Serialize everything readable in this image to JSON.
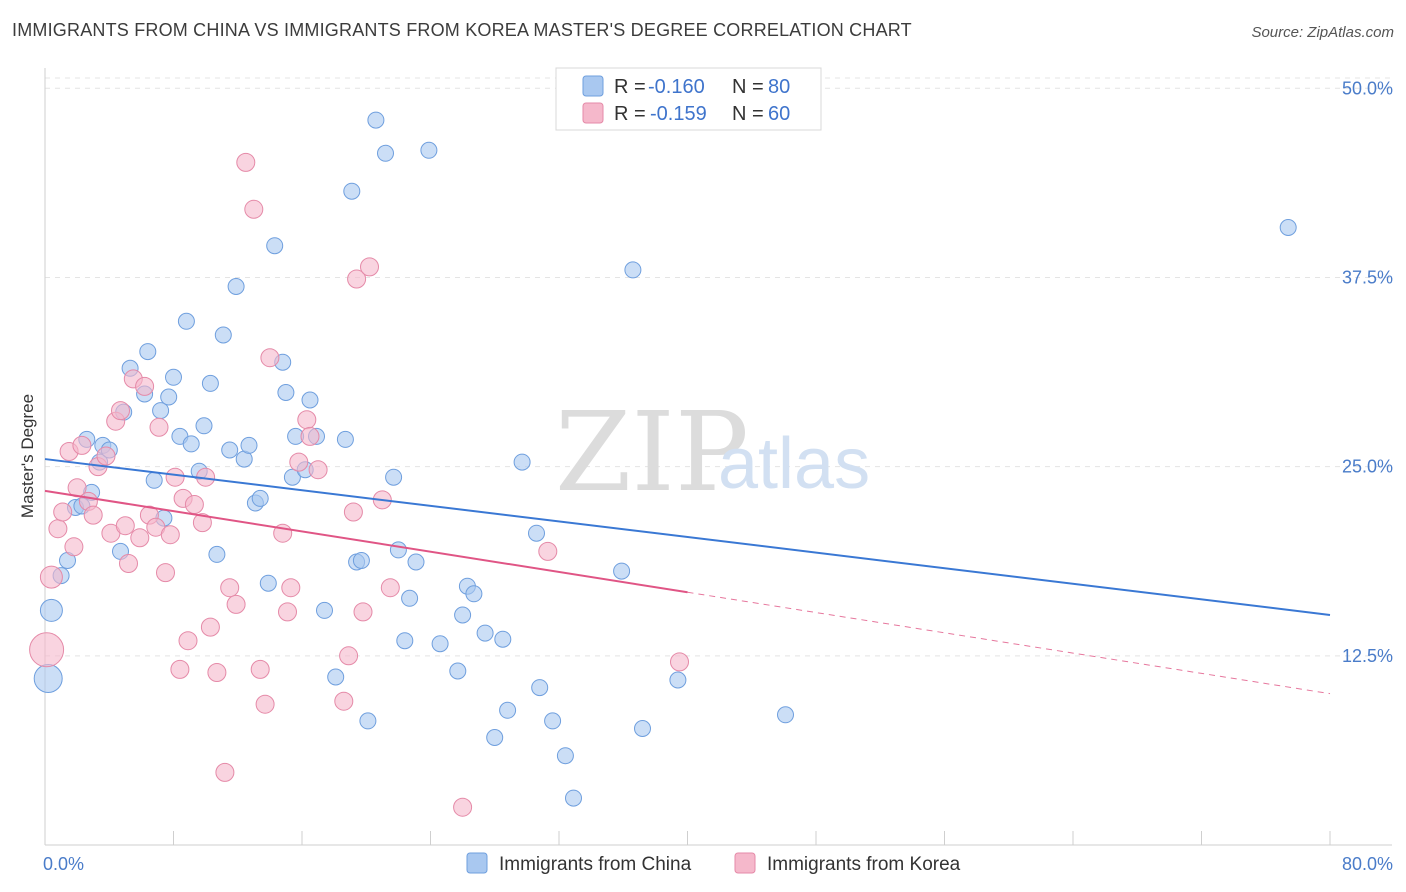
{
  "title": "IMMIGRANTS FROM CHINA VS IMMIGRANTS FROM KOREA MASTER'S DEGREE CORRELATION CHART",
  "source": "Source: ZipAtlas.com",
  "watermark": {
    "zip": "ZIP",
    "atlas": "atlas"
  },
  "legend": {
    "r_label": "R =",
    "n_label": "N =",
    "rows": [
      {
        "r": "-0.160",
        "n": "80",
        "color": "#a9c8f0"
      },
      {
        "r": "-0.159",
        "n": "60",
        "color": "#f5b8cb"
      }
    ]
  },
  "bottom_legend": [
    "Immigrants from China",
    "Immigrants from Korea"
  ],
  "chart_data": {
    "type": "scatter",
    "title": "IMMIGRANTS FROM CHINA VS IMMIGRANTS FROM KOREA MASTER'S DEGREE CORRELATION CHART",
    "xlabel": "",
    "ylabel": "Master's Degree",
    "xlim": [
      0,
      80
    ],
    "ylim": [
      0,
      52
    ],
    "x_ticks": [
      "0.0%",
      "80.0%"
    ],
    "y_ticks": [
      {
        "value": 12.5,
        "label": "12.5%"
      },
      {
        "value": 25,
        "label": "25.0%"
      },
      {
        "value": 37.5,
        "label": "37.5%"
      },
      {
        "value": 50,
        "label": "50.0%"
      }
    ],
    "grid": true,
    "series": [
      {
        "name": "Immigrants from China",
        "color": "#a9c8f0",
        "stroke": "#6f9fde",
        "trend": {
          "x0": 0,
          "y0": 25.5,
          "x1": 80,
          "y1": 15.2,
          "dash_from": 80
        },
        "trend_color": "#3a78d4",
        "points": [
          [
            0.4,
            15.5,
            11
          ],
          [
            0.2,
            11.0,
            14
          ],
          [
            1.0,
            17.8,
            8
          ],
          [
            1.4,
            18.8,
            8
          ],
          [
            1.9,
            22.3,
            8
          ],
          [
            2.3,
            22.4,
            8
          ],
          [
            2.6,
            26.8,
            8
          ],
          [
            2.9,
            23.3,
            8
          ],
          [
            3.4,
            25.3,
            8
          ],
          [
            3.6,
            26.4,
            8
          ],
          [
            4.0,
            26.1,
            8
          ],
          [
            4.7,
            19.4,
            8
          ],
          [
            4.9,
            28.6,
            8
          ],
          [
            5.3,
            31.5,
            8
          ],
          [
            6.2,
            29.8,
            8
          ],
          [
            6.4,
            32.6,
            8
          ],
          [
            6.8,
            24.1,
            8
          ],
          [
            7.2,
            28.7,
            8
          ],
          [
            7.4,
            21.6,
            8
          ],
          [
            7.7,
            29.6,
            8
          ],
          [
            8.0,
            30.9,
            8
          ],
          [
            8.4,
            27.0,
            8
          ],
          [
            8.8,
            34.6,
            8
          ],
          [
            9.1,
            26.5,
            8
          ],
          [
            9.6,
            24.7,
            8
          ],
          [
            9.9,
            27.7,
            8
          ],
          [
            10.3,
            30.5,
            8
          ],
          [
            10.7,
            19.2,
            8
          ],
          [
            11.1,
            33.7,
            8
          ],
          [
            11.5,
            26.1,
            8
          ],
          [
            11.9,
            36.9,
            8
          ],
          [
            12.4,
            25.5,
            8
          ],
          [
            12.7,
            26.4,
            8
          ],
          [
            13.1,
            22.6,
            8
          ],
          [
            13.4,
            22.9,
            8
          ],
          [
            13.9,
            17.3,
            8
          ],
          [
            14.3,
            39.6,
            8
          ],
          [
            14.8,
            31.9,
            8
          ],
          [
            15.0,
            29.9,
            8
          ],
          [
            15.4,
            24.3,
            8
          ],
          [
            15.6,
            27.0,
            8
          ],
          [
            16.2,
            24.8,
            8
          ],
          [
            16.5,
            29.4,
            8
          ],
          [
            16.9,
            27.0,
            8
          ],
          [
            17.4,
            15.5,
            8
          ],
          [
            18.1,
            11.1,
            8
          ],
          [
            18.7,
            26.8,
            8
          ],
          [
            19.1,
            43.2,
            8
          ],
          [
            19.4,
            18.7,
            8
          ],
          [
            19.7,
            18.8,
            8
          ],
          [
            20.1,
            8.2,
            8
          ],
          [
            20.6,
            47.9,
            8
          ],
          [
            21.2,
            45.7,
            8
          ],
          [
            21.7,
            24.3,
            8
          ],
          [
            22.0,
            19.5,
            8
          ],
          [
            22.4,
            13.5,
            8
          ],
          [
            22.7,
            16.3,
            8
          ],
          [
            23.1,
            18.7,
            8
          ],
          [
            23.9,
            45.9,
            8
          ],
          [
            24.6,
            13.3,
            8
          ],
          [
            25.7,
            11.5,
            8
          ],
          [
            26.0,
            15.2,
            8
          ],
          [
            26.3,
            17.1,
            8
          ],
          [
            26.7,
            16.6,
            8
          ],
          [
            27.4,
            14.0,
            8
          ],
          [
            28.0,
            7.1,
            8
          ],
          [
            28.5,
            13.6,
            8
          ],
          [
            28.8,
            8.9,
            8
          ],
          [
            29.7,
            25.3,
            8
          ],
          [
            30.6,
            20.6,
            8
          ],
          [
            30.8,
            10.4,
            8
          ],
          [
            31.6,
            8.2,
            8
          ],
          [
            32.4,
            5.9,
            8
          ],
          [
            32.9,
            3.1,
            8
          ],
          [
            35.9,
            18.1,
            8
          ],
          [
            36.6,
            38.0,
            8
          ],
          [
            37.2,
            7.7,
            8
          ],
          [
            39.4,
            10.9,
            8
          ],
          [
            46.1,
            8.6,
            8
          ],
          [
            77.4,
            40.8,
            8
          ]
        ]
      },
      {
        "name": "Immigrants from Korea",
        "color": "#f5b8cb",
        "stroke": "#e58aa8",
        "trend": {
          "x0": 0,
          "y0": 23.4,
          "x1": 80,
          "y1": 10.0,
          "dash_from": 40
        },
        "trend_color": "#e05585",
        "points": [
          [
            0.1,
            12.9,
            17
          ],
          [
            0.4,
            17.7,
            11
          ],
          [
            0.8,
            20.9,
            9
          ],
          [
            1.1,
            22.0,
            9
          ],
          [
            1.5,
            26.0,
            9
          ],
          [
            1.8,
            19.7,
            9
          ],
          [
            2.0,
            23.6,
            9
          ],
          [
            2.3,
            26.4,
            9
          ],
          [
            2.7,
            22.7,
            9
          ],
          [
            3.0,
            21.8,
            9
          ],
          [
            3.3,
            25.0,
            9
          ],
          [
            3.8,
            25.7,
            9
          ],
          [
            4.1,
            20.6,
            9
          ],
          [
            4.4,
            28.0,
            9
          ],
          [
            4.7,
            28.7,
            9
          ],
          [
            5.0,
            21.1,
            9
          ],
          [
            5.2,
            18.6,
            9
          ],
          [
            5.5,
            30.8,
            9
          ],
          [
            5.9,
            20.3,
            9
          ],
          [
            6.2,
            30.3,
            9
          ],
          [
            6.5,
            21.8,
            9
          ],
          [
            6.9,
            21.0,
            9
          ],
          [
            7.1,
            27.6,
            9
          ],
          [
            7.5,
            18.0,
            9
          ],
          [
            7.8,
            20.5,
            9
          ],
          [
            8.1,
            24.3,
            9
          ],
          [
            8.4,
            11.6,
            9
          ],
          [
            8.6,
            22.9,
            9
          ],
          [
            8.9,
            13.5,
            9
          ],
          [
            9.3,
            22.5,
            9
          ],
          [
            9.8,
            21.3,
            9
          ],
          [
            10.0,
            24.3,
            9
          ],
          [
            10.3,
            14.4,
            9
          ],
          [
            10.7,
            11.4,
            9
          ],
          [
            11.2,
            4.8,
            9
          ],
          [
            11.5,
            17.0,
            9
          ],
          [
            11.9,
            15.9,
            9
          ],
          [
            12.5,
            45.1,
            9
          ],
          [
            13.0,
            42.0,
            9
          ],
          [
            13.4,
            11.6,
            9
          ],
          [
            13.7,
            9.3,
            9
          ],
          [
            14.0,
            32.2,
            9
          ],
          [
            14.8,
            20.6,
            9
          ],
          [
            15.1,
            15.4,
            9
          ],
          [
            15.3,
            17.0,
            9
          ],
          [
            15.8,
            25.3,
            9
          ],
          [
            16.3,
            28.1,
            9
          ],
          [
            16.5,
            27.0,
            9
          ],
          [
            17.0,
            24.8,
            9
          ],
          [
            18.6,
            9.5,
            9
          ],
          [
            18.9,
            12.5,
            9
          ],
          [
            19.2,
            22.0,
            9
          ],
          [
            19.4,
            37.4,
            9
          ],
          [
            19.8,
            15.4,
            9
          ],
          [
            20.2,
            38.2,
            9
          ],
          [
            21.0,
            22.8,
            9
          ],
          [
            21.5,
            17.0,
            9
          ],
          [
            26.0,
            2.5,
            9
          ],
          [
            31.3,
            19.4,
            9
          ],
          [
            39.5,
            12.1,
            9
          ]
        ]
      }
    ]
  }
}
